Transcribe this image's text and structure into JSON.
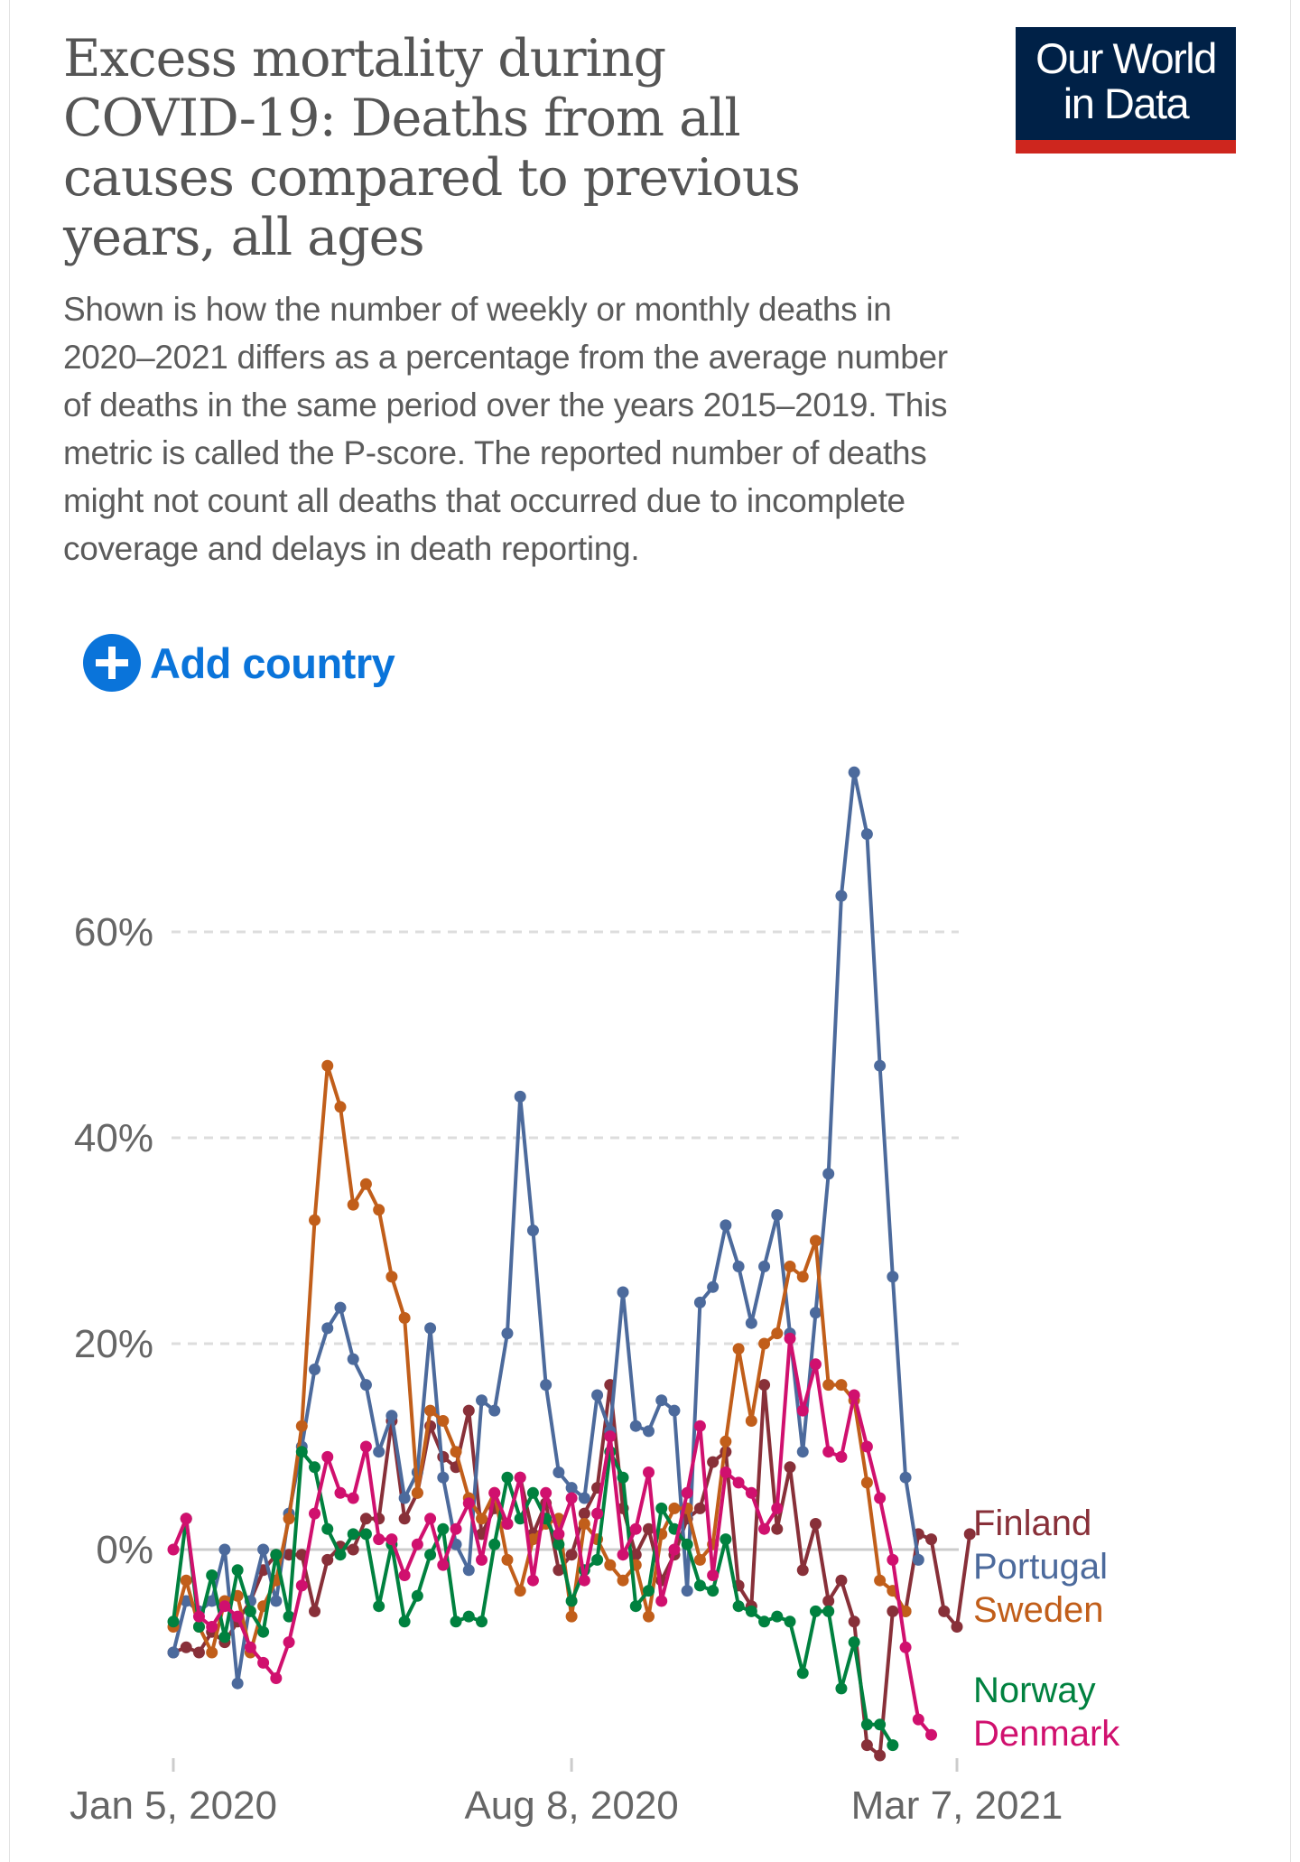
{
  "header": {
    "title": "Excess mortality during COVID-19: Deaths from all causes compared to previous years, all ages",
    "title_lines": [
      "Excess mortality during",
      "COVID-19: Deaths from all",
      "causes compared to previous",
      "years, all ages"
    ],
    "subtitle": "Shown is how the number of weekly or monthly deaths in 2020–2021 differs as a percentage from the average number of deaths in the same period over the years 2015–2019. This metric is called the P-score. The reported number of deaths might not count all deaths that occurred due to incomplete coverage and delays in death reporting.",
    "subtitle_lines": [
      "Shown is how the number of weekly or monthly deaths in",
      "2020–2021 differs as a percentage from the average number",
      "of deaths in the same period over the years 2015–2019. This",
      "metric is called the P-score. The reported number of deaths",
      "might not count all deaths that occurred due to incomplete",
      "coverage and delays in death reporting."
    ]
  },
  "logo": {
    "line1": "Our World",
    "line2": "in Data",
    "bg_color": "#002147",
    "bar_color": "#ce261e"
  },
  "controls": {
    "add_country_label": "Add country",
    "accent_color": "#0a74da",
    "icon": "plus-circle-icon"
  },
  "chart_data": {
    "type": "line",
    "title": "Excess mortality during COVID-19: Deaths from all causes compared to previous years, all ages",
    "xlabel": "",
    "ylabel": "",
    "x_tick_labels": [
      "Jan 5, 2020",
      "Aug 8, 2020",
      "Mar 7, 2021"
    ],
    "x_tick_index": [
      0,
      31,
      61
    ],
    "y_ticks": [
      0,
      20,
      40,
      60
    ],
    "y_tick_labels": [
      "0%",
      "20%",
      "40%",
      "60%"
    ],
    "ylim": [
      -20,
      76
    ],
    "grid": true,
    "legend_placement": "right",
    "series": [
      {
        "name": "Finland",
        "color": "#883039",
        "values": [
          -10,
          -9.5,
          -10,
          -8,
          -9,
          -7,
          -5,
          -2,
          -0.5,
          -0.5,
          -0.5,
          -6,
          -1,
          0.3,
          0,
          3,
          3,
          12.5,
          3,
          5.5,
          12,
          9,
          8,
          13.5,
          1.5,
          4,
          2.5,
          7,
          1.5,
          4.5,
          -2,
          -0.5,
          3.5,
          6,
          16,
          4,
          -0.5,
          2,
          -3,
          -0.5,
          3,
          4,
          8.5,
          9.5,
          -3.5,
          -5.5,
          16,
          2,
          8,
          -2,
          2.5,
          -5,
          -3,
          -7,
          -19,
          -20,
          -6,
          -6,
          1.5,
          1,
          -6,
          -7.5,
          1.5
        ]
      },
      {
        "name": "Portugal",
        "color": "#4c6a9c",
        "values": [
          -10,
          -5,
          -6,
          -5,
          0,
          -13,
          -5,
          0,
          -5,
          3.5,
          10,
          17.5,
          21.5,
          23.5,
          18.5,
          16,
          9.5,
          13,
          5,
          7.5,
          21.5,
          7,
          0.5,
          -2,
          14.5,
          13.5,
          21,
          44,
          31,
          16,
          7.5,
          6,
          5,
          15,
          11.5,
          25,
          12,
          11.5,
          14.5,
          13.5,
          -4,
          24,
          25.5,
          31.5,
          27.5,
          22,
          27.5,
          32.5,
          21,
          9.5,
          23,
          36.5,
          63.5,
          75.5,
          69.5,
          47,
          26.5,
          7,
          -1
        ]
      },
      {
        "name": "Sweden",
        "color": "#c15065",
        "values": [
          -7.5,
          -3,
          -7.5,
          -10,
          -5,
          -4.5,
          -10,
          -5.5,
          -3,
          3,
          12,
          32,
          47,
          43,
          33.5,
          35.5,
          33,
          26.5,
          22.5,
          5.5,
          13.5,
          12.5,
          9.5,
          5,
          3,
          5.5,
          -1,
          -4,
          1,
          2.5,
          3,
          -6.5,
          2.5,
          1,
          -1.5,
          -3,
          -1.5,
          -6.5,
          1.5,
          4,
          4,
          -1,
          0.5,
          10.5,
          19.5,
          12.5,
          20,
          21,
          27.5,
          26.5,
          30,
          16,
          16,
          14.5,
          6.5,
          -3,
          -4,
          -6
        ]
      },
      {
        "name": "Norway",
        "color": "#00875e",
        "values": [
          -7,
          3,
          -7.5,
          -2.5,
          -8.5,
          -2,
          -6,
          -8,
          -0.5,
          -6.5,
          9.5,
          8,
          2,
          -0.5,
          1.5,
          1.5,
          -5.5,
          0.5,
          -7,
          -4.5,
          -0.5,
          2,
          -7,
          -6.5,
          -7,
          0.5,
          7,
          3,
          5.5,
          3,
          0.5,
          -5,
          -2,
          -1,
          9.5,
          7,
          -5.5,
          -4,
          4,
          2,
          0.5,
          -3.5,
          -4,
          1,
          -5.5,
          -6,
          -7,
          -6.5,
          -7,
          -12,
          -6,
          -6,
          -13.5,
          -9,
          -17,
          -17,
          -19
        ]
      },
      {
        "name": "Denmark",
        "color": "#d73c50",
        "values": [
          0,
          3,
          -6.5,
          -7.5,
          -5.5,
          -6.5,
          -9.5,
          -11,
          -12.5,
          -9,
          -3.5,
          3.5,
          9,
          5.5,
          5,
          10,
          1,
          1,
          -2.5,
          0.5,
          3,
          -1.5,
          2,
          4.5,
          -1,
          5.5,
          2.5,
          7,
          -3,
          5.5,
          1.5,
          5,
          -3,
          3.5,
          11,
          -0.5,
          2,
          7.5,
          -5,
          0,
          5.5,
          12,
          -2.5,
          7.5,
          6.5,
          5.5,
          2,
          4,
          20.5,
          13.5,
          18,
          9.5,
          9,
          15,
          10,
          5,
          -1,
          -9.5,
          -16.5,
          -18
        ]
      }
    ]
  },
  "legend": [
    {
      "label": "Finland",
      "color": "#883039"
    },
    {
      "label": "Portugal",
      "color": "#4c6a9c"
    },
    {
      "label": "Sweden",
      "color": "#c15e1a"
    },
    {
      "label": "Norway",
      "color": "#00813f"
    },
    {
      "label": "Denmark",
      "color": "#d0106e"
    }
  ]
}
